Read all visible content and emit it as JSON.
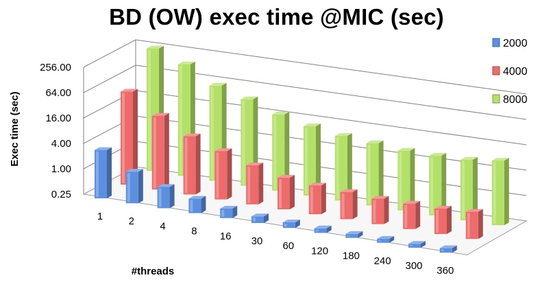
{
  "chart_data": {
    "type": "bar",
    "title": "BD (OW) exec time @MIC (sec)",
    "xlabel": "#threads",
    "ylabel": "Exec time (sec)",
    "yscale": "log2",
    "ylim": [
      0.25,
      256
    ],
    "yticks": [
      "0.25",
      "1.00",
      "4.00",
      "16.00",
      "64.00",
      "256.00"
    ],
    "categories": [
      "1",
      "2",
      "4",
      "8",
      "16",
      "30",
      "60",
      "120",
      "180",
      "240",
      "300",
      "360"
    ],
    "series": [
      {
        "name": "2000",
        "color": "#5b8fe0",
        "values": [
          3.5,
          1.4,
          0.8,
          0.55,
          0.42,
          0.36,
          0.34,
          0.32,
          0.31,
          0.31,
          0.31,
          0.32
        ]
      },
      {
        "name": "4000",
        "color": "#ee6b6b",
        "values": [
          40,
          14,
          6,
          3.5,
          2.1,
          1.4,
          1.2,
          1.1,
          1.0,
          1.0,
          1.0,
          1.1
        ]
      },
      {
        "name": "8000",
        "color": "#b3e066",
        "values": [
          200,
          110,
          45,
          28,
          16,
          11,
          8.5,
          7.5,
          6.5,
          6.5,
          6.8,
          8.5
        ]
      }
    ],
    "legend_position": "right",
    "grid": true
  }
}
